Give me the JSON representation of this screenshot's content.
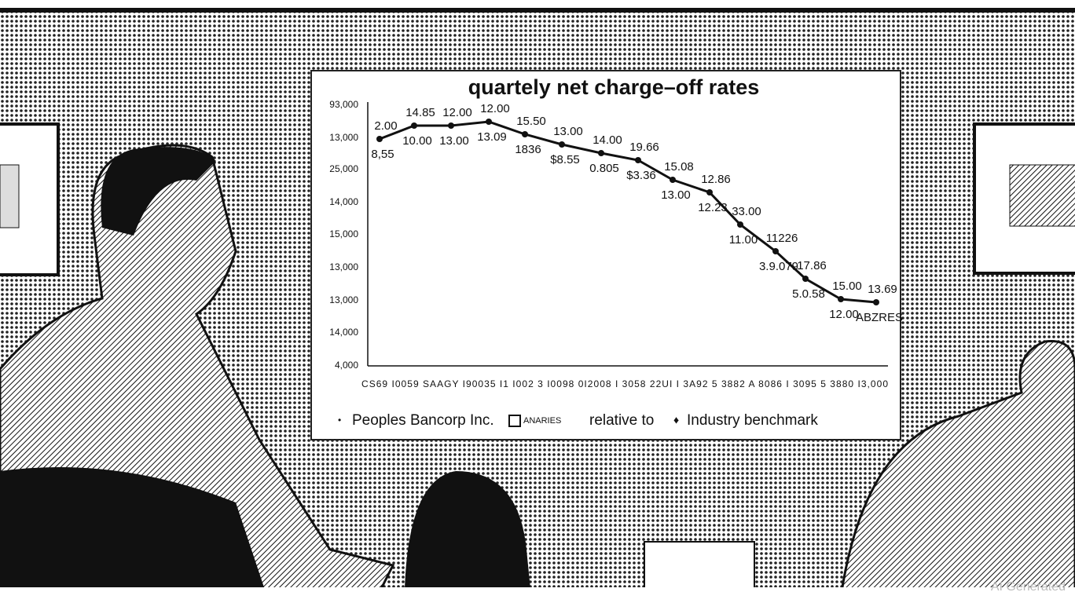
{
  "chart": {
    "title": "quartely net charge–off rates",
    "y_axis_labels": [
      "93,000",
      "13,000",
      "25,000",
      "14,000",
      "15,000",
      "13,000",
      "13,000",
      "14,000",
      "4,000"
    ],
    "x_axis_labels": "CS69 I0059 SAAGY I90035 I1 I002 3 I0098 0I2008 I 3058 22UI I 3A92 5 3882 A 8086 I 3095 5 3880 I3,000",
    "point_labels": [
      [
        "2.00",
        "8,55"
      ],
      [
        "14.85",
        "10.00"
      ],
      [
        "12.00",
        "13.00"
      ],
      [
        "12.00",
        "13.09"
      ],
      [
        "15.50",
        "1836"
      ],
      [
        "13.00",
        "$8.55"
      ],
      [
        "14.00",
        "0.805"
      ],
      [
        "19.66",
        "$3.36"
      ],
      [
        "15.08",
        "13.00"
      ],
      [
        "12.86",
        "12.23"
      ],
      [
        "33.00",
        "11.00"
      ],
      [
        "11226",
        "3.9.079"
      ],
      [
        "17.86",
        "5.0.58"
      ],
      [
        "15.00",
        "12.00"
      ],
      [
        "13.69",
        "ABZRES"
      ]
    ],
    "legend": [
      "Peoples Bancorp Inc.",
      "ANARIES",
      "relative to",
      "Industry benchmark"
    ]
  },
  "watermark": "AI Generated"
}
